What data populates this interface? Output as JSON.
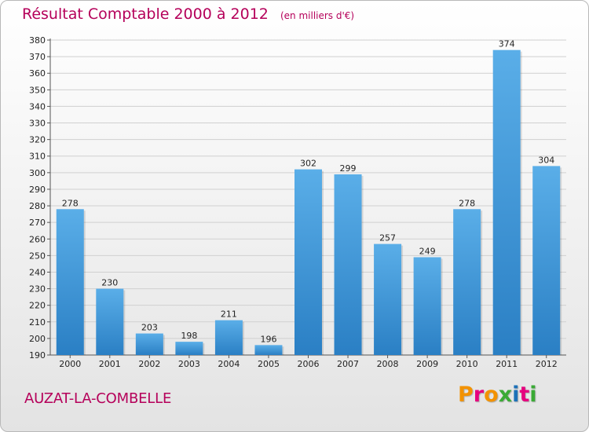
{
  "header": {
    "title": "Résultat Comptable 2000 à 2012",
    "subtitle": "(en milliers d'€)"
  },
  "footer": {
    "commune": "AUZAT-LA-COMBELLE",
    "logo": "Proxiti",
    "logo_colors": [
      "#f39200",
      "#e6007e",
      "#f39200",
      "#3aaa35",
      "#1d71b8",
      "#e6007e",
      "#3aaa35"
    ]
  },
  "colors": {
    "bar_top": "#5aaee8",
    "bar_bottom": "#2a7fc4",
    "grid": "#d0d0d0",
    "text_accent": "#b5005a"
  },
  "chart_data": {
    "type": "bar",
    "title": "Résultat Comptable 2000 à 2012",
    "subtitle": "(en milliers d'€)",
    "categories": [
      "2000",
      "2001",
      "2002",
      "2003",
      "2004",
      "2005",
      "2006",
      "2007",
      "2008",
      "2009",
      "2010",
      "2011",
      "2012"
    ],
    "values": [
      278,
      230,
      203,
      198,
      211,
      196,
      302,
      299,
      257,
      249,
      278,
      374,
      304
    ],
    "ylim": [
      190,
      380
    ],
    "ytick_step": 10,
    "grid": true,
    "data_labels": true
  }
}
